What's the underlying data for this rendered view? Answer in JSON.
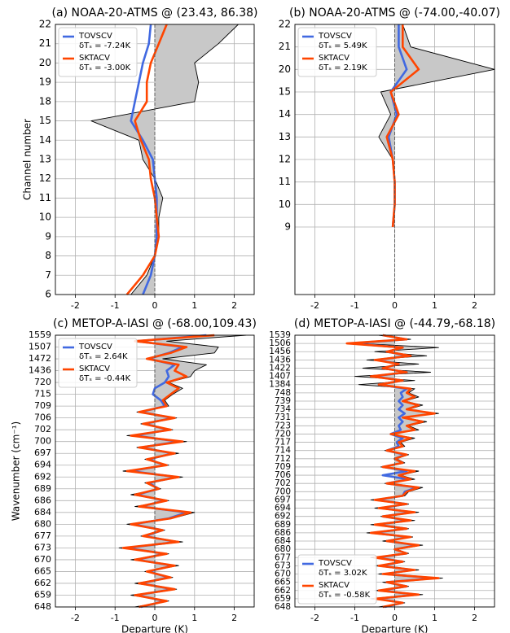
{
  "chart_data": [
    {
      "type": "line",
      "title": "(a) NOAA-20-ATMS @ (23.43, 86.38)",
      "xlabel": null,
      "ylabel": "Channel number",
      "categories": [
        "6",
        "7",
        "8",
        "9",
        "10",
        "11",
        "12",
        "13",
        "14",
        "15",
        "18",
        "19",
        "20",
        "21",
        "22"
      ],
      "xlim": [
        -2.5,
        2.5
      ],
      "xticks": [
        -2,
        -1,
        0,
        1,
        2
      ],
      "grid": true,
      "legend": "upper left",
      "series": [
        {
          "color": "#000000",
          "fill": "#c8c8c8",
          "values": [
            -0.6,
            -0.2,
            0.0,
            0.1,
            0.1,
            0.2,
            0.0,
            -0.3,
            -0.4,
            -1.6,
            1.0,
            1.1,
            1.0,
            1.6,
            2.1
          ]
        },
        {
          "name": "TOVSCV",
          "note": "δTₛ = -7.24K",
          "color": "#4169e1",
          "values": [
            -0.3,
            -0.1,
            0.0,
            0.05,
            0.05,
            0.05,
            0.0,
            -0.05,
            -0.3,
            -0.6,
            -0.5,
            -0.4,
            -0.3,
            -0.15,
            -0.1
          ]
        },
        {
          "name": "SKTACV",
          "note": "δTₛ = -3.00K",
          "color": "#ff4500",
          "values": [
            -0.7,
            -0.3,
            0.0,
            0.1,
            0.05,
            0.0,
            -0.1,
            -0.15,
            -0.35,
            -0.5,
            -0.2,
            -0.2,
            -0.1,
            0.1,
            0.3
          ]
        }
      ]
    },
    {
      "type": "line",
      "title": "(b) NOAA-20-ATMS @ (-74.00,-40.07)",
      "xlabel": null,
      "ylabel": null,
      "categories": [
        null,
        null,
        null,
        "9",
        "10",
        "11",
        "12",
        "13",
        "14",
        "15",
        "20",
        "21",
        "22"
      ],
      "xlim": [
        -2.5,
        2.5
      ],
      "xticks": [
        -2,
        -1,
        0,
        1,
        2
      ],
      "grid": true,
      "legend": "upper left",
      "series": [
        {
          "color": "#000000",
          "fill": "#c8c8c8",
          "values": [
            null,
            null,
            null,
            -0.05,
            0.0,
            0.0,
            -0.05,
            -0.4,
            -0.1,
            -0.35,
            2.5,
            0.4,
            0.2
          ]
        },
        {
          "name": "TOVSCV",
          "note": "δTₛ = 5.49K",
          "color": "#4169e1",
          "values": [
            null,
            null,
            null,
            -0.05,
            0.0,
            0.0,
            -0.05,
            -0.15,
            0.05,
            -0.1,
            0.3,
            0.1,
            0.1
          ]
        },
        {
          "name": "SKTACV",
          "note": "δTₛ = 2.19K",
          "color": "#ff4500",
          "values": [
            null,
            null,
            null,
            -0.05,
            0.0,
            0.0,
            -0.05,
            -0.2,
            0.1,
            -0.1,
            0.6,
            0.2,
            0.2
          ]
        }
      ]
    },
    {
      "type": "line",
      "title": "(c) METOP-A-IASI @ (-68.00,109.43)",
      "xlabel": "Departure (K)",
      "ylabel": "Wavenumber (cm⁻¹)",
      "ylim": [
        0,
        23
      ],
      "yticks": [
        {
          "value": 0,
          "label": "648"
        },
        {
          "value": 1,
          "label": "659"
        },
        {
          "value": 2,
          "label": "662"
        },
        {
          "value": 3,
          "label": "665"
        },
        {
          "value": 4,
          "label": "670"
        },
        {
          "value": 5,
          "label": "673"
        },
        {
          "value": 6,
          "label": "677"
        },
        {
          "value": 7,
          "label": "680"
        },
        {
          "value": 8,
          "label": "684"
        },
        {
          "value": 9,
          "label": "686"
        },
        {
          "value": 10,
          "label": "689"
        },
        {
          "value": 11,
          "label": "692"
        },
        {
          "value": 12,
          "label": "694"
        },
        {
          "value": 13,
          "label": "697"
        },
        {
          "value": 14,
          "label": "700"
        },
        {
          "value": 15,
          "label": "702"
        },
        {
          "value": 16,
          "label": "706"
        },
        {
          "value": 17,
          "label": "709"
        },
        {
          "value": 18,
          "label": "715"
        },
        {
          "value": 19,
          "label": "720"
        },
        {
          "value": 20,
          "label": "1436"
        },
        {
          "value": 21,
          "label": "1472"
        },
        {
          "value": 22,
          "label": "1507"
        },
        {
          "value": 23,
          "label": "1559"
        }
      ],
      "y": [
        0,
        0.5,
        1,
        1.5,
        2,
        2.5,
        3,
        3.5,
        4,
        4.5,
        5,
        5.5,
        6,
        6.5,
        7,
        7.5,
        8,
        8.5,
        9,
        9.5,
        10,
        10.5,
        11,
        11.5,
        12,
        12.5,
        13,
        13.5,
        14,
        14.5,
        15,
        15.5,
        16,
        16.5,
        17,
        17.5,
        18,
        18.5,
        19,
        19.5,
        20,
        20.5,
        21,
        21.5,
        22,
        22.5,
        23
      ],
      "xlim": [
        -2.5,
        2.5
      ],
      "xticks": [
        -2,
        -1,
        0,
        1,
        2
      ],
      "grid": true,
      "legend": "upper left",
      "series": [
        {
          "color": "#000000",
          "fill": "#c8c8c8",
          "values": [
            -0.5,
            0.35,
            -0.6,
            0.55,
            -0.5,
            0.45,
            -0.25,
            0.6,
            -0.6,
            0.35,
            -0.9,
            0.7,
            -0.35,
            0.25,
            -0.7,
            0.45,
            1.0,
            -0.5,
            0.35,
            -0.6,
            0.15,
            -0.25,
            0.7,
            -0.8,
            0.35,
            -0.25,
            0.6,
            -0.45,
            0.8,
            -0.7,
            0.45,
            -0.35,
            0.55,
            -0.45,
            0.35,
            0.25,
            0.45,
            0.7,
            0.35,
            0.9,
            1.0,
            1.3,
            0.2,
            1.5,
            1.6,
            0.3,
            2.3
          ]
        },
        {
          "name": "TOVSCV",
          "note": "δTₛ = 2.64K",
          "color": "#4169e1",
          "values": [
            -0.35,
            0.25,
            -0.45,
            0.45,
            -0.35,
            0.35,
            -0.15,
            0.45,
            -0.45,
            0.25,
            -0.7,
            0.55,
            -0.25,
            0.2,
            -0.55,
            0.35,
            0.8,
            -0.35,
            0.25,
            -0.45,
            0.1,
            -0.15,
            0.55,
            -0.6,
            0.25,
            -0.15,
            0.45,
            -0.35,
            0.6,
            -0.5,
            0.35,
            -0.25,
            0.45,
            -0.35,
            0.25,
            0.15,
            -0.05,
            0.0,
            0.25,
            0.35,
            0.3,
            0.5,
            -0.15,
            0.35,
            0.7,
            -0.45,
            1.3
          ]
        },
        {
          "name": "SKTACV",
          "note": "δTₛ = -0.44K",
          "color": "#ff4500",
          "values": [
            -0.4,
            0.3,
            -0.5,
            0.5,
            -0.4,
            0.4,
            -0.2,
            0.5,
            -0.5,
            0.3,
            -0.8,
            0.6,
            -0.3,
            0.2,
            -0.6,
            0.4,
            0.9,
            -0.4,
            0.3,
            -0.5,
            0.1,
            -0.2,
            0.6,
            -0.7,
            0.3,
            -0.2,
            0.5,
            -0.4,
            0.7,
            -0.6,
            0.4,
            -0.3,
            0.5,
            -0.4,
            0.3,
            0.2,
            0.4,
            0.6,
            0.3,
            0.8,
            0.5,
            0.6,
            -0.2,
            0.4,
            0.8,
            -0.5,
            1.5
          ]
        }
      ]
    },
    {
      "type": "line",
      "title": "(d) METOP-A-IASI @ (-44.79,-68.18)",
      "xlabel": "Departure (K)",
      "ylabel": null,
      "ylim": [
        0,
        33
      ],
      "yticks": [
        {
          "value": 0,
          "label": "648"
        },
        {
          "value": 1,
          "label": "659"
        },
        {
          "value": 2,
          "label": "662"
        },
        {
          "value": 3,
          "label": "665"
        },
        {
          "value": 4,
          "label": "670"
        },
        {
          "value": 5,
          "label": "673"
        },
        {
          "value": 6,
          "label": "677"
        },
        {
          "value": 7,
          "label": "680"
        },
        {
          "value": 8,
          "label": "684"
        },
        {
          "value": 9,
          "label": "686"
        },
        {
          "value": 10,
          "label": "689"
        },
        {
          "value": 11,
          "label": "692"
        },
        {
          "value": 12,
          "label": "694"
        },
        {
          "value": 13,
          "label": "697"
        },
        {
          "value": 14,
          "label": "700"
        },
        {
          "value": 15,
          "label": "702"
        },
        {
          "value": 16,
          "label": "706"
        },
        {
          "value": 17,
          "label": "709"
        },
        {
          "value": 18,
          "label": "712"
        },
        {
          "value": 19,
          "label": "714"
        },
        {
          "value": 20,
          "label": "717"
        },
        {
          "value": 21,
          "label": "720"
        },
        {
          "value": 22,
          "label": "723"
        },
        {
          "value": 23,
          "label": "731"
        },
        {
          "value": 24,
          "label": "734"
        },
        {
          "value": 25,
          "label": "739"
        },
        {
          "value": 26,
          "label": "748"
        },
        {
          "value": 27,
          "label": "1384"
        },
        {
          "value": 28,
          "label": "1407"
        },
        {
          "value": 29,
          "label": "1422"
        },
        {
          "value": 30,
          "label": "1436"
        },
        {
          "value": 31,
          "label": "1456"
        },
        {
          "value": 32,
          "label": "1506"
        },
        {
          "value": 33,
          "label": "1539"
        }
      ],
      "y": [
        0,
        0.5,
        1,
        1.5,
        2,
        2.5,
        3,
        3.5,
        4,
        4.5,
        5,
        5.5,
        6,
        6.5,
        7,
        7.5,
        8,
        8.5,
        9,
        9.5,
        10,
        10.5,
        11,
        11.5,
        12,
        12.5,
        13,
        13.5,
        14,
        14.5,
        15,
        15.5,
        16,
        16.5,
        17,
        17.5,
        18,
        18.5,
        19,
        19.5,
        20,
        20.5,
        21,
        21.5,
        22,
        22.5,
        23,
        23.5,
        24,
        24.5,
        25,
        25.5,
        26,
        26.5,
        27,
        27.5,
        28,
        28.5,
        29,
        29.5,
        30,
        30.5,
        31,
        31.5,
        32,
        32.5,
        33
      ],
      "xlim": [
        -2.5,
        2.5
      ],
      "xticks": [
        -2,
        -1,
        0,
        1,
        2
      ],
      "grid": true,
      "legend": "lower left",
      "series": [
        {
          "color": "#000000",
          "fill": "#c8c8c8",
          "values": [
            -0.4,
            0.25,
            -0.6,
            0.7,
            -0.5,
            0.35,
            -0.3,
            1.2,
            -0.4,
            0.6,
            -0.5,
            0.25,
            -0.6,
            0.35,
            0.05,
            0.7,
            -0.3,
            0.45,
            -0.7,
            0.35,
            -0.6,
            0.5,
            -0.35,
            0.6,
            -0.5,
            0.35,
            -0.6,
            0.25,
            0.35,
            0.7,
            -0.25,
            0.5,
            0.15,
            0.6,
            -0.35,
            0.25,
            0.05,
            0.35,
            -0.25,
            0.25,
            0.15,
            0.5,
            -0.1,
            0.6,
            0.35,
            0.8,
            0.25,
            1.1,
            0.35,
            0.7,
            0.25,
            0.6,
            0.35,
            0.5,
            -0.9,
            0.5,
            -1.0,
            0.9,
            -0.8,
            0.6,
            -0.7,
            0.8,
            -0.5,
            1.1,
            -0.9,
            0.4,
            -0.4
          ]
        },
        {
          "name": "TOVSCV",
          "note": "δTₛ = 3.02K",
          "color": "#4169e1",
          "values": [
            -0.25,
            0.2,
            -0.45,
            0.55,
            -0.35,
            0.3,
            -0.2,
            1.0,
            -0.25,
            0.45,
            -0.35,
            0.2,
            -0.45,
            0.3,
            0.0,
            0.55,
            -0.2,
            0.35,
            -0.55,
            0.3,
            -0.45,
            0.35,
            -0.3,
            0.45,
            -0.35,
            0.3,
            -0.45,
            0.2,
            0.25,
            0.55,
            -0.2,
            0.35,
            -0.3,
            0.3,
            -0.3,
            0.2,
            0.0,
            0.25,
            -0.2,
            0.1,
            0.05,
            0.2,
            -0.1,
            0.15,
            0.1,
            0.2,
            0.1,
            0.25,
            0.1,
            0.2,
            0.1,
            0.2,
            0.15,
            0.3,
            -0.4,
            0.2,
            -0.55,
            0.3,
            -0.3,
            0.1,
            -0.45,
            0.35,
            -0.2,
            0.2,
            -1.1,
            0.3,
            -0.3
          ]
        },
        {
          "name": "SKTACV",
          "note": "δTₛ = -0.58K",
          "color": "#ff4500",
          "values": [
            -0.3,
            0.2,
            -0.5,
            0.6,
            -0.4,
            0.3,
            -0.2,
            1.1,
            -0.3,
            0.5,
            -0.4,
            0.2,
            -0.5,
            0.3,
            0.0,
            0.6,
            -0.2,
            0.4,
            -0.6,
            0.3,
            -0.5,
            0.4,
            -0.3,
            0.5,
            -0.4,
            0.3,
            -0.5,
            0.2,
            0.3,
            0.6,
            -0.2,
            0.4,
            0.1,
            0.5,
            -0.3,
            0.2,
            0.0,
            0.3,
            -0.2,
            0.2,
            0.1,
            0.4,
            -0.1,
            0.5,
            0.3,
            0.7,
            0.2,
            1.0,
            0.3,
            0.6,
            0.2,
            0.5,
            0.3,
            0.4,
            -0.4,
            0.2,
            -0.6,
            0.3,
            -0.3,
            0.1,
            -0.5,
            0.4,
            -0.2,
            0.2,
            -1.2,
            0.3,
            -0.3
          ]
        }
      ]
    }
  ]
}
